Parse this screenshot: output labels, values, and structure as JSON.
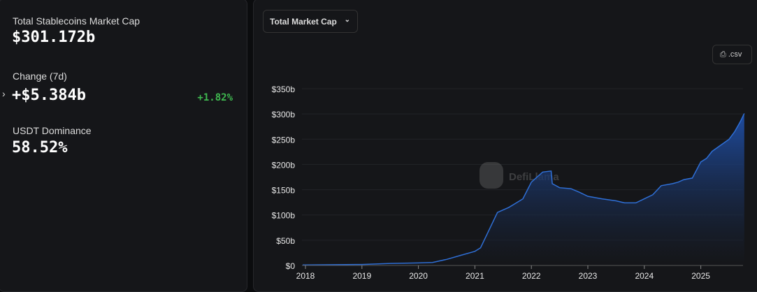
{
  "stats": {
    "total_label": "Total Stablecoins Market Cap",
    "total_value": "$301.172b",
    "change_label": "Change (7d)",
    "change_value": "+$5.384b",
    "change_pct": "+1.82%",
    "dominance_label": "USDT Dominance",
    "dominance_value": "58.52%"
  },
  "controls": {
    "metric_select": "Total Market Cap",
    "csv_label": ".csv"
  },
  "watermark": "DefiLlama",
  "colors": {
    "line": "#2f6fd6",
    "positive": "#3fb950"
  },
  "chart_data": {
    "type": "area",
    "title": "",
    "xlabel": "",
    "ylabel": "",
    "ylim": [
      0,
      350
    ],
    "y_ticks": [
      {
        "v": 0,
        "label": "$0"
      },
      {
        "v": 50,
        "label": "$50b"
      },
      {
        "v": 100,
        "label": "$100b"
      },
      {
        "v": 150,
        "label": "$150b"
      },
      {
        "v": 200,
        "label": "$200b"
      },
      {
        "v": 250,
        "label": "$250b"
      },
      {
        "v": 300,
        "label": "$300b"
      },
      {
        "v": 350,
        "label": "$350b"
      }
    ],
    "x_ticks": [
      "2018",
      "2019",
      "2020",
      "2021",
      "2022",
      "2023",
      "2024",
      "2025"
    ],
    "grid": true,
    "series": [
      {
        "x": [
          2017.95,
          2018,
          2019,
          2019.5,
          2020,
          2020.25,
          2020.5,
          2020.75,
          2021,
          2021.1,
          2021.25,
          2021.4,
          2021.6,
          2021.75,
          2021.85,
          2022,
          2022.2,
          2022.35,
          2022.37,
          2022.5,
          2022.7,
          2022.85,
          2023,
          2023.25,
          2023.5,
          2023.65,
          2023.85,
          2024,
          2024.15,
          2024.3,
          2024.5,
          2024.6,
          2024.7,
          2024.85,
          2025,
          2025.1,
          2025.2,
          2025.3,
          2025.4,
          2025.5,
          2025.6,
          2025.7,
          2025.77
        ],
        "values": [
          1,
          1,
          2,
          4,
          5,
          6,
          12,
          20,
          28,
          35,
          70,
          105,
          115,
          125,
          132,
          165,
          185,
          187,
          162,
          154,
          152,
          145,
          137,
          132,
          128,
          124,
          124,
          132,
          140,
          158,
          162,
          165,
          170,
          173,
          205,
          212,
          226,
          234,
          242,
          250,
          265,
          285,
          301
        ]
      }
    ]
  }
}
